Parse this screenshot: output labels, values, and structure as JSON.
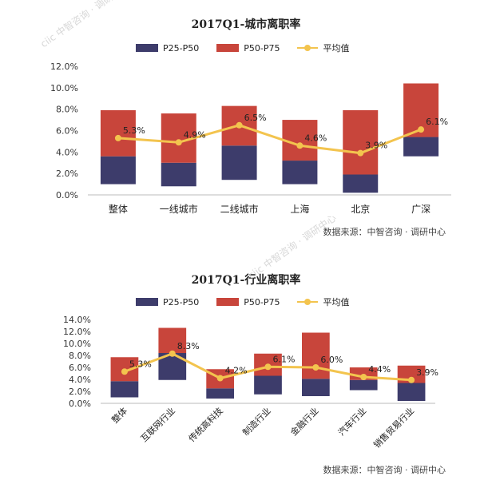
{
  "colors": {
    "p25_p50": "#3d3c6b",
    "p50_p75": "#c8453b",
    "avg": "#f3c44e"
  },
  "legend": {
    "p25_p50": "P25-P50",
    "p50_p75": "P50-P75",
    "avg": "平均值"
  },
  "chart_data": [
    {
      "type": "bar",
      "title": "2017Q1-城市离职率",
      "source": "数据来源：中智咨询 · 调研中心",
      "categories": [
        "整体",
        "一线城市",
        "二线城市",
        "上海",
        "北京",
        "广深"
      ],
      "ylim": [
        0,
        12
      ],
      "yticks": [
        "0.0%",
        "2.0%",
        "4.0%",
        "6.0%",
        "8.0%",
        "10.0%",
        "12.0%"
      ],
      "series": [
        {
          "name": "P25-P50",
          "low": [
            1.0,
            0.8,
            1.4,
            1.0,
            0.2,
            3.6
          ],
          "high": [
            3.6,
            3.0,
            4.6,
            3.2,
            1.9,
            5.4
          ]
        },
        {
          "name": "P50-P75",
          "low": [
            3.6,
            3.0,
            4.6,
            3.2,
            1.9,
            5.4
          ],
          "high": [
            7.9,
            7.6,
            8.3,
            7.0,
            7.9,
            10.4
          ]
        },
        {
          "name": "平均值",
          "values": [
            5.3,
            4.9,
            6.5,
            4.6,
            3.9,
            6.1
          ],
          "labels": [
            "5.3%",
            "4.9%",
            "6.5%",
            "4.6%",
            "3.9%",
            "6.1%"
          ]
        }
      ]
    },
    {
      "type": "bar",
      "title": "2017Q1-行业离职率",
      "source": "数据来源：中智咨询 · 调研中心",
      "categories": [
        "整体",
        "互联网行业",
        "传统高科技",
        "制造行业",
        "金融行业",
        "汽车行业",
        "销售贸易行业"
      ],
      "ylim": [
        0,
        14
      ],
      "yticks": [
        "0.0%",
        "2.0%",
        "4.0%",
        "6.0%",
        "8.0%",
        "10.0%",
        "12.0%",
        "14.0%"
      ],
      "series": [
        {
          "name": "P25-P50",
          "low": [
            1.0,
            3.9,
            0.8,
            1.5,
            1.2,
            2.2,
            0.4
          ],
          "high": [
            3.7,
            8.4,
            2.5,
            4.6,
            4.1,
            3.9,
            3.4
          ]
        },
        {
          "name": "P50-P75",
          "low": [
            3.7,
            8.4,
            2.5,
            4.6,
            4.1,
            3.9,
            3.4
          ],
          "high": [
            7.7,
            12.6,
            5.7,
            8.3,
            11.8,
            6.0,
            6.3
          ]
        },
        {
          "name": "平均值",
          "values": [
            5.3,
            8.3,
            4.2,
            6.1,
            6.0,
            4.4,
            3.9
          ],
          "labels": [
            "5.3%",
            "8.3%",
            "4.2%",
            "6.1%",
            "6.0%",
            "4.4%",
            "3.9%"
          ]
        }
      ]
    }
  ],
  "watermark": "ciic 中智咨询 · 调研中心"
}
